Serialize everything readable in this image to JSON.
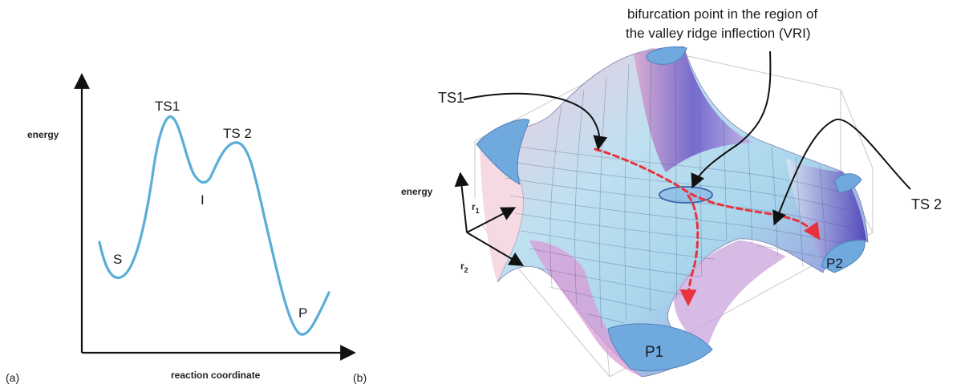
{
  "panel_a": {
    "tag": "(a)",
    "y_axis_label": "energy",
    "x_axis_label": "reaction coordinate",
    "points": {
      "S": "S",
      "TS1": "TS1",
      "I": "I",
      "TS2": "TS 2",
      "P": "P"
    },
    "curve_color": "#5aaed6"
  },
  "panel_b": {
    "tag": "(b)",
    "annotation_line1": "bifurcation point in the region of",
    "annotation_line2": "the valley ridge inflection (VRI)",
    "ts1_label": "TS1",
    "ts2_label": "TS 2",
    "p1_label": "P1",
    "p2_label": "P2",
    "axis_energy": "energy",
    "axis_r1": "r",
    "axis_r1_sub": "1",
    "axis_r2": "r",
    "axis_r2_sub": "2",
    "path_color": "#e8323c",
    "surface_blue": "#79b6e6",
    "surface_purple": "#6b5cc8",
    "surface_pink": "#e9b7d7"
  }
}
